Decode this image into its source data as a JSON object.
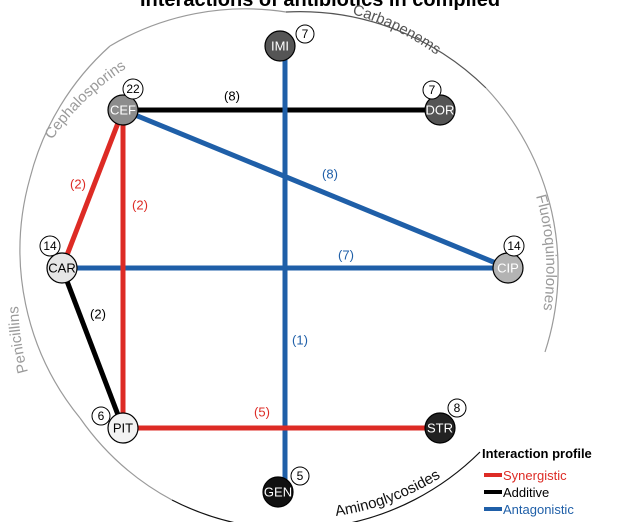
{
  "title": "Interactions of antibiotics in compiled",
  "classes": [
    {
      "key": "carbapenems",
      "label": "Carbapenems",
      "color": "#555555"
    },
    {
      "key": "cephalosporins",
      "label": "Cephalosporins",
      "color": "#9a9a9a"
    },
    {
      "key": "fluoroquinolones",
      "label": "Fluoroquinolones",
      "color": "#9a9a9a"
    },
    {
      "key": "penicillins",
      "label": "Penicillins",
      "color": "#9a9a9a"
    },
    {
      "key": "aminoglycosides",
      "label": "Aminoglycosides",
      "color": "#111111"
    }
  ],
  "nodes": [
    {
      "key": "IMI",
      "label": "IMI",
      "count": "7",
      "fill": "#555555",
      "text_color": "#ffffff"
    },
    {
      "key": "DOR",
      "label": "DOR",
      "count": "7",
      "fill": "#555555",
      "text_color": "#ffffff"
    },
    {
      "key": "CEF",
      "label": "CEF",
      "count": "22",
      "fill": "#8c8c8c",
      "text_color": "#ffffff"
    },
    {
      "key": "CAR",
      "label": "CAR",
      "count": "14",
      "fill": "#e6e6e6",
      "text_color": "#000000"
    },
    {
      "key": "CIP",
      "label": "CIP",
      "count": "14",
      "fill": "#b3b3b3",
      "text_color": "#ffffff"
    },
    {
      "key": "PIT",
      "label": "PIT",
      "count": "6",
      "fill": "#f2f2f2",
      "text_color": "#000000"
    },
    {
      "key": "STR",
      "label": "STR",
      "count": "8",
      "fill": "#222222",
      "text_color": "#ffffff"
    },
    {
      "key": "GEN",
      "label": "GEN",
      "count": "5",
      "fill": "#111111",
      "text_color": "#ffffff"
    }
  ],
  "edges": [
    {
      "key": "cef-dor",
      "label": "(8)",
      "profile": "additive"
    },
    {
      "key": "imi-gen",
      "label": "(1)",
      "profile": "antagonistic"
    },
    {
      "key": "cef-cip",
      "label": "(8)",
      "profile": "antagonistic"
    },
    {
      "key": "car-cip",
      "label": "(7)",
      "profile": "antagonistic"
    },
    {
      "key": "cef-car",
      "label": "(2)",
      "profile": "synergistic"
    },
    {
      "key": "cef-pit",
      "label": "(2)",
      "profile": "synergistic"
    },
    {
      "key": "car-pit",
      "label": "(2)",
      "profile": "additive"
    },
    {
      "key": "pit-str",
      "label": "(5)",
      "profile": "synergistic"
    }
  ],
  "legend": {
    "title": "Interaction profile",
    "items": [
      {
        "key": "synergistic",
        "label": "Synergistic",
        "color": "#dd2b25"
      },
      {
        "key": "additive",
        "label": "Additive",
        "color": "#000000"
      },
      {
        "key": "antagonistic",
        "label": "Antagonistic",
        "color": "#1f5fa8"
      }
    ]
  }
}
